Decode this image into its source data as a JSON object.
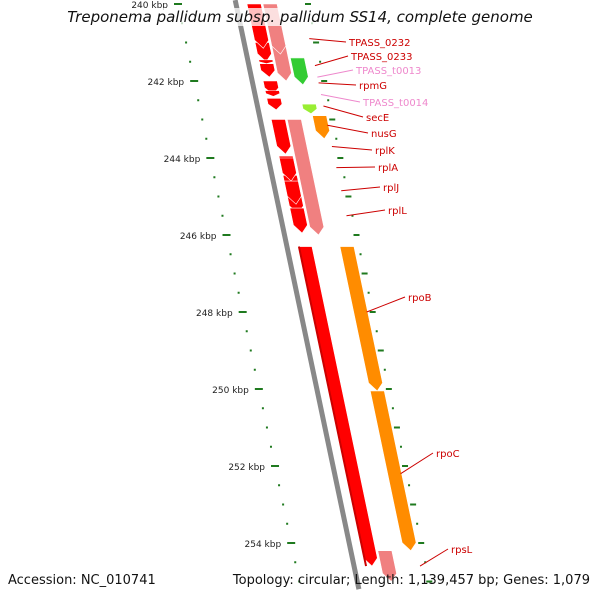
{
  "title": "Treponema pallidum subsp. pallidum SS14, complete genome",
  "footer": {
    "accession": "Accession: NC_010741",
    "summary": "Topology: circular; Length: 1,139,457 bp; Genes: 1,079"
  },
  "colors": {
    "gene_red": "#ff0000",
    "gene_dark_red": "#cc0000",
    "cds_pink": "#f08080",
    "cds_orange": "#ff8c00",
    "cds_green": "#33cc33",
    "cds_lime": "#99ee33",
    "magenta": "#ee1199",
    "trna_pink": "#ee99cc",
    "backbone": "#888888",
    "tick_green": "#1f7a1f",
    "label_red": "#cc0000",
    "label_pink": "#ee88cc"
  },
  "scale": {
    "unit": "kbp",
    "labels": [
      {
        "kbp": 240,
        "text": "240 kbp"
      },
      {
        "kbp": 242,
        "text": "242 kbp"
      },
      {
        "kbp": 244,
        "text": "244 kbp"
      },
      {
        "kbp": 246,
        "text": "246 kbp"
      },
      {
        "kbp": 248,
        "text": "248 kbp"
      },
      {
        "kbp": 250,
        "text": "250 kbp"
      },
      {
        "kbp": 252,
        "text": "252 kbp"
      },
      {
        "kbp": 254,
        "text": "254 kbp"
      }
    ]
  },
  "genes": [
    {
      "name": "TPASS_0232",
      "color": "label_red",
      "start": 240.0,
      "end": 241.15,
      "track": "red",
      "dir": "down"
    },
    {
      "name": "TPASS_0233",
      "color": "label_red",
      "start": 240.0,
      "end": 241.3,
      "track": "pink",
      "dir": "down"
    },
    {
      "name": "TPASS_t0013",
      "color": "label_pink",
      "start": 241.45,
      "end": 241.55,
      "track": "red",
      "dir": "down"
    },
    {
      "name": "rpmG",
      "color": "label_red",
      "start": 241.4,
      "end": 242.1,
      "track": "green",
      "dir": "down"
    },
    {
      "name": "TPASS_t0014",
      "color": "label_pink",
      "start": 242.25,
      "end": 242.4,
      "track": "red",
      "dir": "down"
    },
    {
      "name": "secE",
      "color": "label_red",
      "start": 242.6,
      "end": 242.85,
      "track": "lime",
      "dir": "down"
    },
    {
      "name": "nusG",
      "color": "label_red",
      "start": 242.9,
      "end": 243.5,
      "track": "orange",
      "dir": "down"
    },
    {
      "name": "rplK",
      "color": "label_red",
      "start": 243.0,
      "end": 243.9,
      "track": "red",
      "dir": "down"
    },
    {
      "name": "rplA",
      "color": "label_red",
      "start": 244.0,
      "end": 244.6,
      "track": "red",
      "dir": "down"
    },
    {
      "name": "rplJ",
      "color": "label_red",
      "start": 244.6,
      "end": 245.2,
      "track": "red",
      "dir": "down"
    },
    {
      "name": "rplL",
      "color": "label_red",
      "start": 245.3,
      "end": 245.95,
      "track": "red",
      "dir": "down"
    },
    {
      "name": "rpoB",
      "color": "label_red",
      "start": 246.3,
      "end": 250.05,
      "track": "orange",
      "dir": "down"
    },
    {
      "name": "rpoC",
      "color": "label_red",
      "start": 250.05,
      "end": 254.2,
      "track": "orange",
      "dir": "down"
    },
    {
      "name": "rpsL",
      "color": "label_red",
      "start": 254.2,
      "end": 255.0,
      "track": "pink",
      "dir": "down"
    }
  ],
  "rna_features": [
    {
      "start": 240.0,
      "end": 241.0,
      "track": "pink",
      "color": "magenta"
    },
    {
      "start": 241.0,
      "end": 242.0,
      "track": "pink",
      "color": "cds_pink"
    },
    {
      "start": 243.0,
      "end": 246.0,
      "track": "pink",
      "color": "cds_pink"
    },
    {
      "start": 246.3,
      "end": 254.6,
      "track": "red",
      "color": "gene_red"
    }
  ]
}
